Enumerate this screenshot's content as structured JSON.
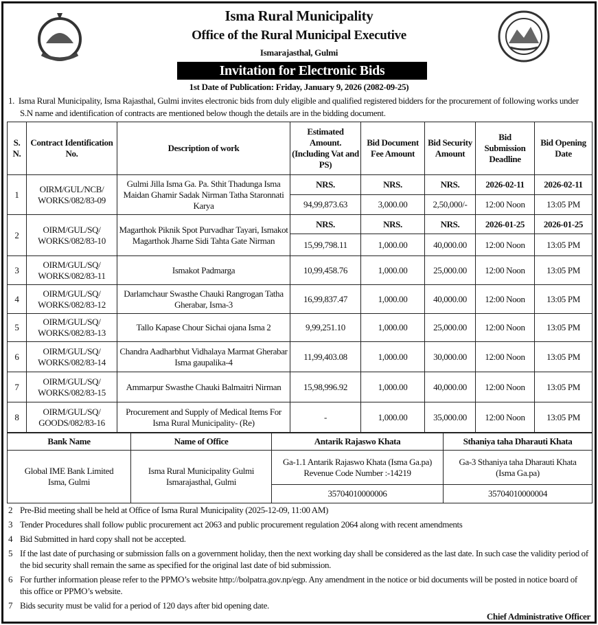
{
  "header": {
    "title": "Isma Rural Municipality",
    "subtitle": "Office of the Rural Municipal Executive",
    "location": "Ismarajasthal, Gulmi",
    "banner": "Invitation for Electronic Bids",
    "publication": "1st Date of Publication: Friday, January 9, 2026 (2082-09-25)"
  },
  "intro": {
    "num": "1.",
    "text": "Isma Rural Municipality, Isma Rajasthal, Gulmi invites electronic bids from duly eligible and qualified registered bidders for the procurement of following works under S.N name and identification of contracts are mentioned below though the details are in the bidding document."
  },
  "table": {
    "headers": [
      "S. N.",
      "Contract Identification No.",
      "Description of work",
      "Estimated Amount. (Including Vat and PS)",
      "Bid Document Fee Amount",
      "Bid Security Amount",
      "Bid Submission Deadline",
      "Bid Opening Date"
    ],
    "rows": [
      {
        "sn": "1",
        "id": "OIRM/GUL/NCB/ WORKS/082/83-09",
        "desc": "Gulmi Jilla Isma Ga.  Pa. Sthit Thadunga Isma Maidan Ghamir Sadak Nirman Tatha Staronnati Karya",
        "top": [
          "NRS.",
          "NRS.",
          "NRS.",
          "2026-02-11",
          "2026-02-11"
        ],
        "est": "94,99,873.63",
        "fee": "3,000.00",
        "sec": "2,50,000/-",
        "sub": "12:00 Noon",
        "open": "13:05 PM"
      },
      {
        "sn": "2",
        "id": "OIRM/GUL/SQ/ WORKS/082/83-10",
        "desc": "Magarthok Piknik Spot Purvadhar Tayari, Ismakot Magarthok Jharne Sidi Tahta Gate Nirman",
        "top": [
          "NRS.",
          "NRS.",
          "NRS.",
          "2026-01-25",
          "2026-01-25"
        ],
        "est": "15,99,798.11",
        "fee": "1,000.00",
        "sec": "40,000.00",
        "sub": "12:00 Noon",
        "open": "13:05 PM"
      },
      {
        "sn": "3",
        "id": "OIRM/GUL/SQ/ WORKS/082/83-11",
        "desc": "Ismakot Padmarga",
        "est": "10,99,458.76",
        "fee": "1,000.00",
        "sec": "25,000.00",
        "sub": "12:00 Noon",
        "open": "13:05 PM"
      },
      {
        "sn": "4",
        "id": "OIRM/GUL/SQ/ WORKS/082/83-12",
        "desc": "Darlamchaur Swasthe Chauki Rangrogan Tatha Gherabar, Isma-3",
        "est": "16,99,837.47",
        "fee": "1,000.00",
        "sec": "40,000.00",
        "sub": "12:00 Noon",
        "open": "13:05 PM"
      },
      {
        "sn": "5",
        "id": "OIRM/GUL/SQ/ WORKS/082/83-13",
        "desc": "Tallo Kapase Chour Sichai ojana Isma 2",
        "est": "9,99,251.10",
        "fee": "1,000.00",
        "sec": "25,000.00",
        "sub": "12:00 Noon",
        "open": "13:05 PM"
      },
      {
        "sn": "6",
        "id": "OIRM/GUL/SQ/ WORKS/082/83-14",
        "desc": "Chandra Aadharbhut Vidhalaya Marmat Gherabar Isma gaupalika-4",
        "est": "11,99,403.08",
        "fee": "1,000.00",
        "sec": "30,000.00",
        "sub": "12:00 Noon",
        "open": "13:05 PM"
      },
      {
        "sn": "7",
        "id": "OIRM/GUL/SQ/ WORKS/082/83-15",
        "desc": "Ammarpur Swasthe Chauki Balmaitri Nirman",
        "est": "15,98,996.92",
        "fee": "1,000.00",
        "sec": "40,000.00",
        "sub": "12:00 Noon",
        "open": "13:05 PM"
      },
      {
        "sn": "8",
        "id": "OIRM/GUL/SQ/ GOODS/082/83-16",
        "desc": "Procurement and Supply of Medical Items For Isma Rural Municipality- (Re)",
        "est": "-",
        "fee": "1,000.00",
        "sec": "35,000.00",
        "sub": "12:00 Noon",
        "open": "13:05 PM"
      }
    ]
  },
  "bank": {
    "headers": [
      "Bank Name",
      "Name of Office",
      "Antarik Rajaswo Khata",
      "Sthaniya taha Dharauti Khata"
    ],
    "bank_name": "Global IME Bank Limited Isma, Gulmi",
    "office": "Isma Rural Municipality Gulmi Ismarajasthal, Gulmi",
    "antarik": "Ga-1.1 Antarik Rajaswo Khata  (Isma Ga.pa) Revenue Code Number  :-14219",
    "sthaniya": "Ga-3 Sthaniya taha Dharauti Khata (Isma Ga.pa)",
    "antarik_acc": "35704010000006",
    "sthaniya_acc": "35704010000004"
  },
  "notes": [
    {
      "n": "2",
      "t": "Pre-Bid meeting shall be held at Office of Isma Rural Municipality (2025-12-09, 11:00 AM)"
    },
    {
      "n": "3",
      "t": "Tender Procedures shall follow public procurement act 2063 and public procurement regulation 2064 along with recent amendments"
    },
    {
      "n": "4",
      "t": "Bid Submitted in hard copy shall not be accepted."
    },
    {
      "n": "5",
      "t": "If the last date of purchasing or submission falls on a government holiday, then the next working day shall be considered as the last date. In such case the validity period of the bid security shall remain the same as specified for the original last date of bid submission."
    },
    {
      "n": "6",
      "t": "For further information please refer to the PPMO’s website http://bolpatra.gov.np/egp. Any amendment in the notice or bid documents will be posted in notice board of this office or PPMO’s website."
    },
    {
      "n": "7",
      "t": "Bids security must be valid for a period of 120 days after bid opening date."
    }
  ],
  "signature": "Chief Administrative Officer",
  "icons": {
    "left_logo": "nepal-emblem-icon",
    "right_logo": "municipality-seal-icon"
  }
}
